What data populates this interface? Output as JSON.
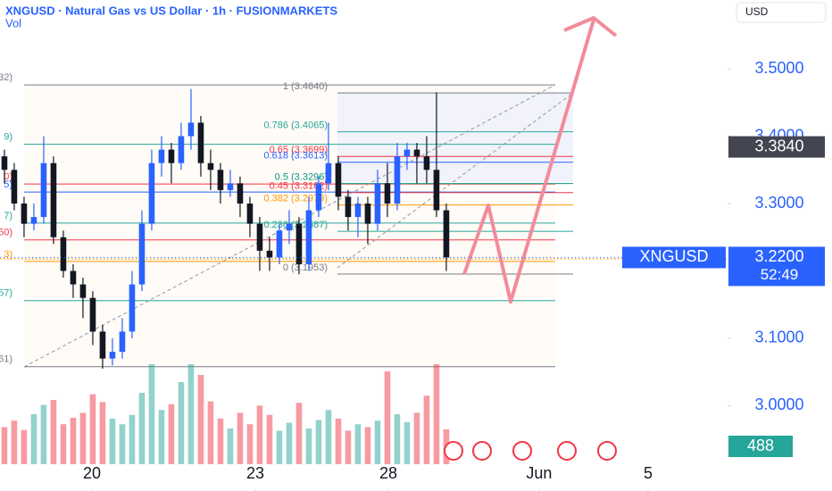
{
  "chart_data": {
    "type": "candlestick",
    "title": "XNGUSD · Natural Gas vs US Dollar · 1h · FUSIONMARKETS",
    "subtitle": "Vol",
    "currency": "USD",
    "symbol": "XNGUSD",
    "countdown": "52:49",
    "open": [
      3.37,
      3.35,
      3.3,
      3.27,
      3.28,
      3.36,
      3.25,
      3.2,
      3.18,
      3.16,
      3.11,
      3.07,
      3.08,
      3.11,
      3.18,
      3.27,
      3.36,
      3.38,
      3.36,
      3.4,
      3.42,
      3.36,
      3.35,
      3.32,
      3.33,
      3.3,
      3.27,
      3.23,
      3.22,
      3.26,
      3.27,
      3.21,
      3.29,
      3.33,
      3.36,
      3.31,
      3.28,
      3.3,
      3.27,
      3.33,
      3.3,
      3.37,
      3.38,
      3.37,
      3.35,
      3.29
    ],
    "high": [
      3.38,
      3.36,
      3.31,
      3.3,
      3.4,
      3.37,
      3.26,
      3.21,
      3.19,
      3.17,
      3.12,
      3.1,
      3.13,
      3.2,
      3.29,
      3.38,
      3.4,
      3.39,
      3.42,
      3.47,
      3.43,
      3.38,
      3.36,
      3.35,
      3.34,
      3.31,
      3.28,
      3.25,
      3.27,
      3.29,
      3.28,
      3.31,
      3.34,
      3.42,
      3.37,
      3.32,
      3.31,
      3.31,
      3.35,
      3.36,
      3.39,
      3.39,
      3.39,
      3.4,
      3.465,
      3.3
    ],
    "low": [
      3.33,
      3.29,
      3.25,
      3.26,
      3.27,
      3.24,
      3.19,
      3.16,
      3.13,
      3.09,
      3.055,
      3.06,
      3.07,
      3.1,
      3.17,
      3.26,
      3.34,
      3.33,
      3.35,
      3.38,
      3.34,
      3.32,
      3.3,
      3.31,
      3.28,
      3.25,
      3.2,
      3.2,
      3.21,
      3.24,
      3.195,
      3.2,
      3.28,
      3.32,
      3.29,
      3.26,
      3.25,
      3.24,
      3.26,
      3.28,
      3.29,
      3.35,
      3.33,
      3.33,
      3.28,
      3.2
    ],
    "close": [
      3.35,
      3.3,
      3.27,
      3.28,
      3.36,
      3.25,
      3.2,
      3.18,
      3.16,
      3.11,
      3.07,
      3.08,
      3.11,
      3.18,
      3.27,
      3.36,
      3.38,
      3.36,
      3.4,
      3.42,
      3.36,
      3.35,
      3.32,
      3.33,
      3.3,
      3.27,
      3.23,
      3.22,
      3.26,
      3.27,
      3.21,
      3.29,
      3.33,
      3.36,
      3.31,
      3.28,
      3.3,
      3.27,
      3.33,
      3.3,
      3.37,
      3.38,
      3.37,
      3.35,
      3.29,
      3.22
    ],
    "volume": [
      520,
      610,
      480,
      700,
      830,
      900,
      560,
      650,
      720,
      980,
      870,
      640,
      560,
      690,
      1000,
      1400,
      760,
      840,
      1150,
      1400,
      1250,
      880,
      640,
      500,
      720,
      560,
      820,
      690,
      470,
      580,
      860,
      500,
      620,
      760,
      640,
      470,
      560,
      520,
      610,
      1300,
      700,
      590,
      720,
      960,
      1400,
      488
    ],
    "colors": {
      "up": "#2962ff",
      "down": "#131722",
      "volume_up": "rgba(38,166,154,0.5)",
      "volume_down": "rgba(242,54,69,0.5)"
    },
    "last_price": {
      "value": 3.22,
      "label": "3.2200"
    },
    "marker": {
      "value": 3.384,
      "label": "3.3840"
    },
    "xlim": [
      -0.45,
      73.64
    ],
    "ylim": [
      2.8735,
      3.602
    ],
    "xticks": [
      {
        "value": 8.91,
        "label": "20"
      },
      {
        "value": 25.55,
        "label": "23"
      },
      {
        "value": 39.1,
        "label": "28"
      },
      {
        "value": 54.45,
        "label": "Jun"
      },
      {
        "value": 65.55,
        "label": "5"
      }
    ],
    "yticks": [
      {
        "value": 3.0,
        "label": "3.0000"
      },
      {
        "value": 3.1,
        "label": "3.1000"
      },
      {
        "value": 3.3,
        "label": "3.3000"
      },
      {
        "value": 3.4,
        "label": "3.4000"
      },
      {
        "value": 3.5,
        "label": "3.5000"
      }
    ],
    "fib_a": {
      "levels": [
        {
          "value": 3.476,
          "color": "#787b86",
          "label": "32)"
        },
        {
          "value": 3.388,
          "color": "#26a69a",
          "label": "9)"
        },
        {
          "value": 3.329,
          "color": "#f23645",
          "label": "0)"
        },
        {
          "value": 3.317,
          "color": "#2962ff",
          "label": "5)"
        },
        {
          "value": 3.271,
          "color": "#26a69a",
          "label": "7)"
        },
        {
          "value": 3.246,
          "color": "#f23645",
          "label": "50)"
        },
        {
          "value": 3.214,
          "color": "#ff9800",
          "label": "3)"
        },
        {
          "value": 3.156,
          "color": "#26a69a",
          "label": "57)"
        },
        {
          "value": 3.058,
          "color": "#787b86",
          "label": "61)"
        }
      ]
    },
    "fib_b": {
      "levels": [
        {
          "value": 3.464,
          "color": "#787b86",
          "label": "1 (3.4640)"
        },
        {
          "value": 3.4065,
          "color": "#26a69a",
          "label": "0.786 (3.4065)"
        },
        {
          "value": 3.3699,
          "color": "#f23645",
          "label": "0.65 (3.3699)"
        },
        {
          "value": 3.3613,
          "color": "#2962ff",
          "label": "0.618 (3.3613)"
        },
        {
          "value": 3.3296,
          "color": "#089981",
          "label": "0.5 (3.3296)"
        },
        {
          "value": 3.3162,
          "color": "#f23645",
          "label": "0.45 (3.3162)"
        },
        {
          "value": 3.2979,
          "color": "#ff9800",
          "label": "0.382 (3.2979)"
        },
        {
          "value": 3.2587,
          "color": "#26a69a",
          "label": "0.236 (3.2587)"
        },
        {
          "value": 3.1953,
          "color": "#787b86",
          "label": "0 (3.1953)"
        }
      ]
    }
  }
}
